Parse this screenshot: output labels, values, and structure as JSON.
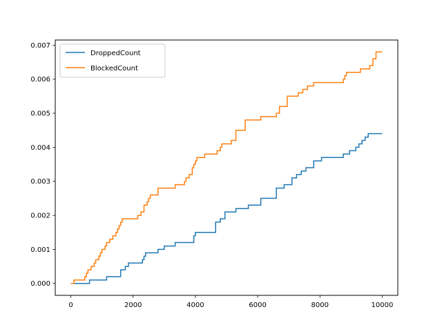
{
  "chart_data": {
    "type": "line",
    "step": true,
    "title": "",
    "xlabel": "",
    "ylabel": "",
    "xlim": [
      -500,
      10500
    ],
    "ylim": [
      -0.00035,
      0.00715
    ],
    "xticks": [
      0,
      2000,
      4000,
      6000,
      8000,
      10000
    ],
    "xtick_labels": [
      "0",
      "2000",
      "4000",
      "6000",
      "8000",
      "10000"
    ],
    "yticks": [
      0.0,
      0.001,
      0.002,
      0.003,
      0.004,
      0.005,
      0.006,
      0.007
    ],
    "ytick_labels": [
      "0.000",
      "0.001",
      "0.002",
      "0.003",
      "0.004",
      "0.005",
      "0.006",
      "0.007"
    ],
    "grid": false,
    "legend_position": "top-left",
    "series": [
      {
        "name": "DroppedCount",
        "color": "#1f77b4",
        "x": [
          0,
          600,
          1150,
          1600,
          1750,
          1850,
          2300,
          2350,
          2400,
          2500,
          2800,
          3000,
          3350,
          3950,
          4000,
          4650,
          4800,
          4950,
          5300,
          5700,
          6100,
          6600,
          6850,
          7100,
          7250,
          7400,
          7550,
          7800,
          8050,
          8750,
          8950,
          9150,
          9250,
          9350,
          9450,
          9550,
          10000
        ],
        "y": [
          0.0,
          0.0001,
          0.0002,
          0.0004,
          0.0005,
          0.0006,
          0.0007,
          0.0008,
          0.0009,
          0.0009,
          0.001,
          0.0011,
          0.0012,
          0.0014,
          0.0015,
          0.0018,
          0.0019,
          0.0021,
          0.0022,
          0.0023,
          0.0025,
          0.0028,
          0.0029,
          0.0031,
          0.0032,
          0.0033,
          0.0034,
          0.0036,
          0.0037,
          0.0038,
          0.0039,
          0.004,
          0.0041,
          0.0042,
          0.0043,
          0.0044,
          0.0044
        ]
      },
      {
        "name": "BlockedCount",
        "color": "#ff7f0e",
        "x": [
          0,
          100,
          200,
          450,
          500,
          550,
          600,
          650,
          750,
          800,
          900,
          950,
          1000,
          1100,
          1150,
          1250,
          1350,
          1450,
          1500,
          1550,
          1600,
          1650,
          1700,
          1750,
          2150,
          2250,
          2350,
          2450,
          2500,
          2550,
          2600,
          2800,
          3350,
          3650,
          3700,
          3800,
          3900,
          3950,
          4000,
          4050,
          4300,
          4700,
          4800,
          4850,
          5150,
          5300,
          5600,
          6100,
          6600,
          6700,
          6950,
          7300,
          7450,
          7600,
          7700,
          7800,
          8750,
          8800,
          8850,
          9000,
          9300,
          9600,
          9700,
          9800,
          10000
        ],
        "y": [
          0.0,
          0.0001,
          0.0001,
          0.0002,
          0.0003,
          0.0004,
          0.0004,
          0.0005,
          0.0006,
          0.0007,
          0.0008,
          0.0009,
          0.001,
          0.0011,
          0.0012,
          0.0013,
          0.0014,
          0.0015,
          0.0016,
          0.0017,
          0.0018,
          0.0019,
          0.0019,
          0.0019,
          0.002,
          0.0021,
          0.0023,
          0.0024,
          0.0025,
          0.0026,
          0.0026,
          0.0028,
          0.0029,
          0.003,
          0.0031,
          0.0032,
          0.0034,
          0.0035,
          0.0036,
          0.0037,
          0.0038,
          0.0039,
          0.004,
          0.0041,
          0.0042,
          0.0045,
          0.0048,
          0.0049,
          0.005,
          0.0052,
          0.0055,
          0.0056,
          0.0057,
          0.0058,
          0.0058,
          0.0059,
          0.006,
          0.0061,
          0.0062,
          0.0062,
          0.0063,
          0.0064,
          0.0066,
          0.0068,
          0.0068
        ]
      }
    ]
  }
}
